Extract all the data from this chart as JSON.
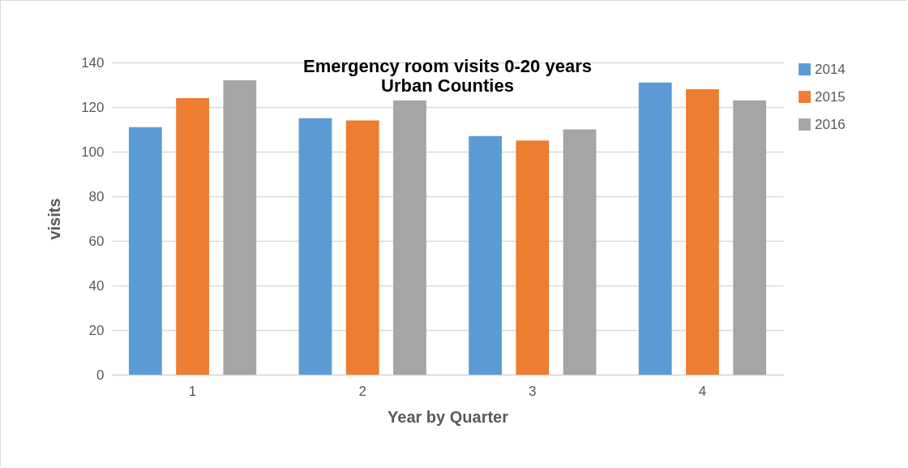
{
  "chart_data": {
    "type": "bar",
    "title": [
      "Emergency room visits 0-20 years",
      "Urban Counties"
    ],
    "xlabel": "Year by Quarter",
    "ylabel": "visits",
    "categories": [
      "1",
      "2",
      "3",
      "4"
    ],
    "series": [
      {
        "name": "2014",
        "color": "#5b9bd5",
        "values": [
          111,
          115,
          107,
          131
        ]
      },
      {
        "name": "2015",
        "color": "#ed7d31",
        "values": [
          124,
          114,
          105,
          128
        ]
      },
      {
        "name": "2016",
        "color": "#a5a5a5",
        "values": [
          132,
          123,
          110,
          123
        ]
      }
    ],
    "ylim": [
      0,
      140
    ],
    "yticks": [
      0,
      20,
      40,
      60,
      80,
      100,
      120,
      140
    ],
    "grid": "y",
    "legend": "right"
  }
}
